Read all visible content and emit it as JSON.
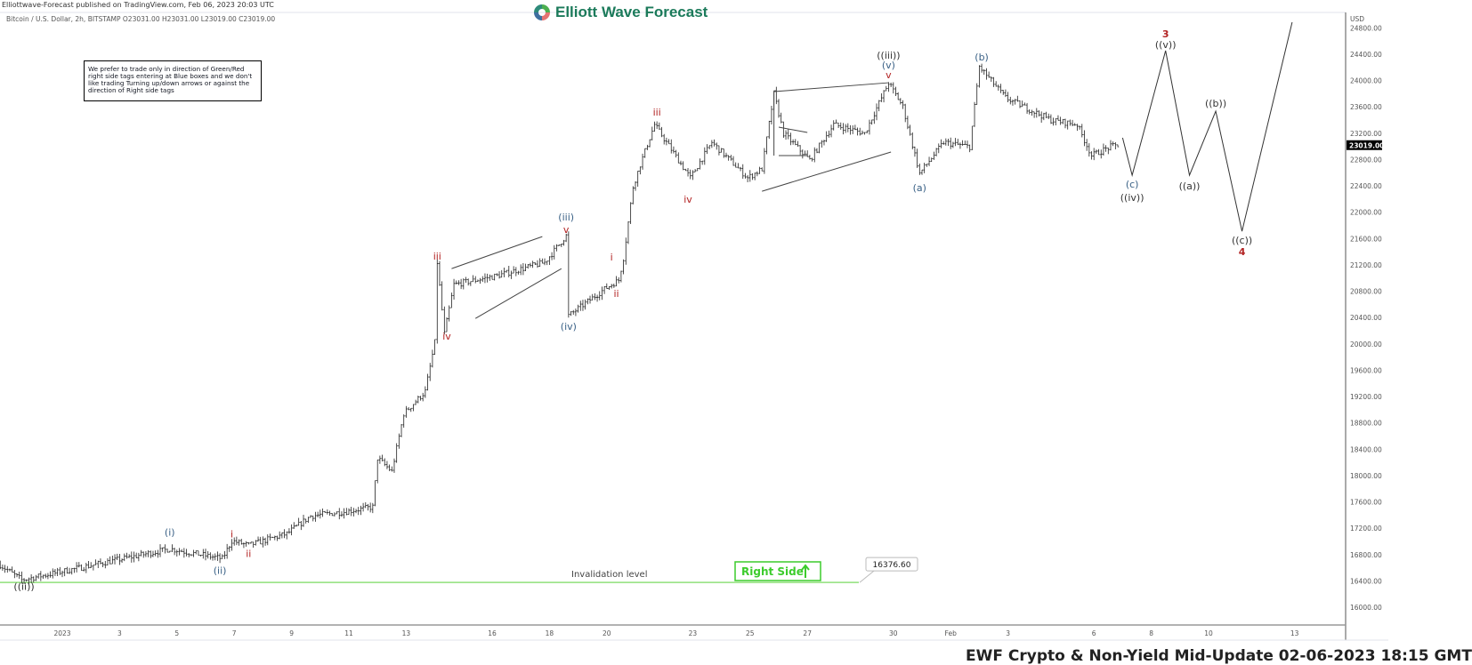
{
  "header": {
    "published": "Elliottwave-Forecast published on TradingView.com, Feb 06, 2023 20:03 UTC",
    "symbol_line": "Bitcoin / U.S. Dollar, 2h, BITSTAMP  O23031.00  H23031.00  L23019.00  C23019.00",
    "logo_text": "Elliott Wave Forecast"
  },
  "note": "We prefer to trade only in direction of Green/Red right side tags entering at Blue boxes and we don't like trading Turning up/down arrows or against the direction of Right side tags",
  "footer_text": "EWF Crypto & Non-Yield Mid-Update 02-06-2023 18:15 GMT",
  "colors": {
    "blue_label": "#3a6186",
    "red_label": "#b22222",
    "dark_label": "#333333",
    "invalidation": "#8fe07a",
    "right_side": "#3ccc2c",
    "bars": "#222222"
  },
  "chart_data": {
    "type": "ohlc",
    "currency_label": "USD",
    "ylim": [
      16000,
      24800
    ],
    "y_ticks": [
      "24800.00",
      "24400.00",
      "24000.00",
      "23600.00",
      "23200.00",
      "22800.00",
      "22400.00",
      "22000.00",
      "21600.00",
      "21200.00",
      "20800.00",
      "20400.00",
      "20000.00",
      "19600.00",
      "19200.00",
      "18800.00",
      "18400.00",
      "18000.00",
      "17600.00",
      "17200.00",
      "16800.00",
      "16400.00",
      "16000.00"
    ],
    "x_ticks": [
      {
        "label": "2023",
        "date": "2023-01-01"
      },
      {
        "label": "3",
        "date": "2023-01-03"
      },
      {
        "label": "5",
        "date": "2023-01-05"
      },
      {
        "label": "7",
        "date": "2023-01-07"
      },
      {
        "label": "9",
        "date": "2023-01-09"
      },
      {
        "label": "11",
        "date": "2023-01-11"
      },
      {
        "label": "13",
        "date": "2023-01-13"
      },
      {
        "label": "16",
        "date": "2023-01-16"
      },
      {
        "label": "18",
        "date": "2023-01-18"
      },
      {
        "label": "20",
        "date": "2023-01-20"
      },
      {
        "label": "23",
        "date": "2023-01-23"
      },
      {
        "label": "25",
        "date": "2023-01-25"
      },
      {
        "label": "27",
        "date": "2023-01-27"
      },
      {
        "label": "30",
        "date": "2023-01-30"
      },
      {
        "label": "Feb",
        "date": "2023-02-01"
      },
      {
        "label": "3",
        "date": "2023-02-03"
      },
      {
        "label": "6",
        "date": "2023-02-06"
      },
      {
        "label": "8",
        "date": "2023-02-08"
      },
      {
        "label": "10",
        "date": "2023-02-10"
      },
      {
        "label": "13",
        "date": "2023-02-13"
      }
    ],
    "last_price": "23019.00",
    "price_path": [
      [
        "2022-12-29T20:00",
        16643
      ],
      [
        "2022-12-30T14:00",
        16414
      ],
      [
        "2023-01-04T18:00",
        16886
      ],
      [
        "2023-01-06T14:00",
        16738
      ],
      [
        "2023-01-06T22:00",
        17008
      ],
      [
        "2023-01-07T12:00",
        16940
      ],
      [
        "2023-01-08T20:00",
        17116
      ],
      [
        "2023-01-09T16:00",
        17386
      ],
      [
        "2023-01-10T22:00",
        17454
      ],
      [
        "2023-01-11T20:00",
        17522
      ],
      [
        "2023-01-12T00:00",
        18265
      ],
      [
        "2023-01-12T12:00",
        18062
      ],
      [
        "2023-01-12T22:00",
        18940
      ],
      [
        "2023-01-13T16:00",
        19278
      ],
      [
        "2023-01-14T00:00",
        20022
      ],
      [
        "2023-01-14T02:00",
        21238
      ],
      [
        "2023-01-14T08:00",
        20157
      ],
      [
        "2023-01-14T16:00",
        20900
      ],
      [
        "2023-01-16T04:00",
        21035
      ],
      [
        "2023-01-17T20:00",
        21238
      ],
      [
        "2023-01-18T14:00",
        21643
      ],
      [
        "2023-01-18T16:00",
        20427
      ],
      [
        "2023-01-19T22:00",
        20832
      ],
      [
        "2023-01-20T10:00",
        20968
      ],
      [
        "2023-01-20T14:00",
        21305
      ],
      [
        "2023-01-20T22:00",
        22386
      ],
      [
        "2023-01-21T04:00",
        22724
      ],
      [
        "2023-01-21T16:00",
        23332
      ],
      [
        "2023-01-22T22:00",
        22522
      ],
      [
        "2023-01-23T16:00",
        23062
      ],
      [
        "2023-01-24T22:00",
        22522
      ],
      [
        "2023-01-25T10:00",
        22657
      ],
      [
        "2023-01-25T20:00",
        23805
      ],
      [
        "2023-01-26T04:00",
        23197
      ],
      [
        "2023-01-27T02:00",
        22792
      ],
      [
        "2023-01-27T22:00",
        23332
      ],
      [
        "2023-01-29T00:00",
        23197
      ],
      [
        "2023-01-29T20:00",
        23967
      ],
      [
        "2023-01-30T08:00",
        23603
      ],
      [
        "2023-01-30T22:00",
        22589
      ],
      [
        "2023-01-31T18:00",
        23062
      ],
      [
        "2023-02-01T16:00",
        22995
      ],
      [
        "2023-02-02T00:00",
        24211
      ],
      [
        "2023-02-02T22:00",
        23738
      ],
      [
        "2023-02-04T12:00",
        23400
      ],
      [
        "2023-02-05T10:00",
        23332
      ],
      [
        "2023-02-05T22:00",
        22860
      ],
      [
        "2023-02-06T14:00",
        22995
      ],
      [
        "2023-02-06T20:00",
        23019
      ]
    ],
    "projection_path": [
      [
        "2023-02-07T00:00",
        23130
      ],
      [
        "2023-02-07T08:00",
        22562
      ],
      [
        "2023-02-08T12:00",
        24454
      ],
      [
        "2023-02-09T08:00",
        22562
      ],
      [
        "2023-02-10T06:00",
        23535
      ],
      [
        "2023-02-11T04:00",
        21711
      ],
      [
        "2023-02-12T22:00",
        24886
      ]
    ],
    "trend_lines": [
      [
        [
          "2023-01-14T14:00",
          21143
        ],
        [
          "2023-01-17T18:00",
          21630
        ]
      ],
      [
        [
          "2023-01-15T10:00",
          20386
        ],
        [
          "2023-01-18T10:00",
          21143
        ]
      ],
      [
        [
          "2023-01-25T20:00",
          23832
        ],
        [
          "2023-01-29T20:00",
          23967
        ]
      ],
      [
        [
          "2023-01-25T10:00",
          22319
        ],
        [
          "2023-01-29T22:00",
          22914
        ]
      ],
      [
        [
          "2023-01-26T00:00",
          23292
        ],
        [
          "2023-01-27T00:00",
          23211
        ]
      ],
      [
        [
          "2023-01-26T00:00",
          22860
        ],
        [
          "2023-01-27T00:00",
          22860
        ]
      ],
      [
        [
          "2023-01-25T20:00",
          23832
        ],
        [
          "2023-01-25T20:00",
          22860
        ]
      ]
    ],
    "wave_labels": [
      {
        "text": "((ii))",
        "t": "2022-12-30T16:00",
        "p": 16318,
        "color": "dark"
      },
      {
        "text": "(i)",
        "t": "2023-01-04T18:00",
        "p": 17143,
        "color": "blue"
      },
      {
        "text": "(ii)",
        "t": "2023-01-06T12:00",
        "p": 16562,
        "color": "blue"
      },
      {
        "text": "i",
        "t": "2023-01-06T22:00",
        "p": 17116,
        "color": "red"
      },
      {
        "text": "ii",
        "t": "2023-01-07T12:00",
        "p": 16819,
        "color": "red"
      },
      {
        "text": "iii",
        "t": "2023-01-14T02:00",
        "p": 21332,
        "color": "red"
      },
      {
        "text": "iv",
        "t": "2023-01-14T10:00",
        "p": 20116,
        "color": "red"
      },
      {
        "text": "(iii)",
        "t": "2023-01-18T14:00",
        "p": 21927,
        "color": "blue"
      },
      {
        "text": "v",
        "t": "2023-01-18T14:00",
        "p": 21737,
        "color": "red"
      },
      {
        "text": "(iv)",
        "t": "2023-01-18T16:00",
        "p": 20265,
        "color": "blue"
      },
      {
        "text": "i",
        "t": "2023-01-20T04:00",
        "p": 21319,
        "color": "red"
      },
      {
        "text": "ii",
        "t": "2023-01-20T08:00",
        "p": 20765,
        "color": "red"
      },
      {
        "text": "iii",
        "t": "2023-01-21T18:00",
        "p": 23522,
        "color": "red"
      },
      {
        "text": "iv",
        "t": "2023-01-22T20:00",
        "p": 22197,
        "color": "red"
      },
      {
        "text": "((iii))",
        "t": "2023-01-29T20:00",
        "p": 24386,
        "color": "dark"
      },
      {
        "text": "(v)",
        "t": "2023-01-29T20:00",
        "p": 24238,
        "color": "blue"
      },
      {
        "text": "v",
        "t": "2023-01-29T20:00",
        "p": 24089,
        "color": "red"
      },
      {
        "text": "(a)",
        "t": "2023-01-30T22:00",
        "p": 22373,
        "color": "blue"
      },
      {
        "text": "(b)",
        "t": "2023-02-02T02:00",
        "p": 24359,
        "color": "blue"
      },
      {
        "text": "3",
        "t": "2023-02-08T12:00",
        "p": 24711,
        "color": "red"
      },
      {
        "text": "((v))",
        "t": "2023-02-08T12:00",
        "p": 24549,
        "color": "dark"
      },
      {
        "text": "(c)",
        "t": "2023-02-07T08:00",
        "p": 22427,
        "color": "blue"
      },
      {
        "text": "((iv))",
        "t": "2023-02-07T08:00",
        "p": 22224,
        "color": "dark"
      },
      {
        "text": "((a))",
        "t": "2023-02-09T08:00",
        "p": 22400,
        "color": "dark"
      },
      {
        "text": "((b))",
        "t": "2023-02-10T06:00",
        "p": 23657,
        "color": "dark"
      },
      {
        "text": "((c))",
        "t": "2023-02-11T04:00",
        "p": 21576,
        "color": "dark"
      },
      {
        "text": "4",
        "t": "2023-02-11T04:00",
        "p": 21400,
        "color": "red"
      }
    ],
    "invalidation": {
      "label": "Invalidation level",
      "price": 16376.6,
      "price_label": "16376.60"
    },
    "right_side_tag": {
      "label": "Right Side",
      "arrow": "up-arrow"
    }
  }
}
